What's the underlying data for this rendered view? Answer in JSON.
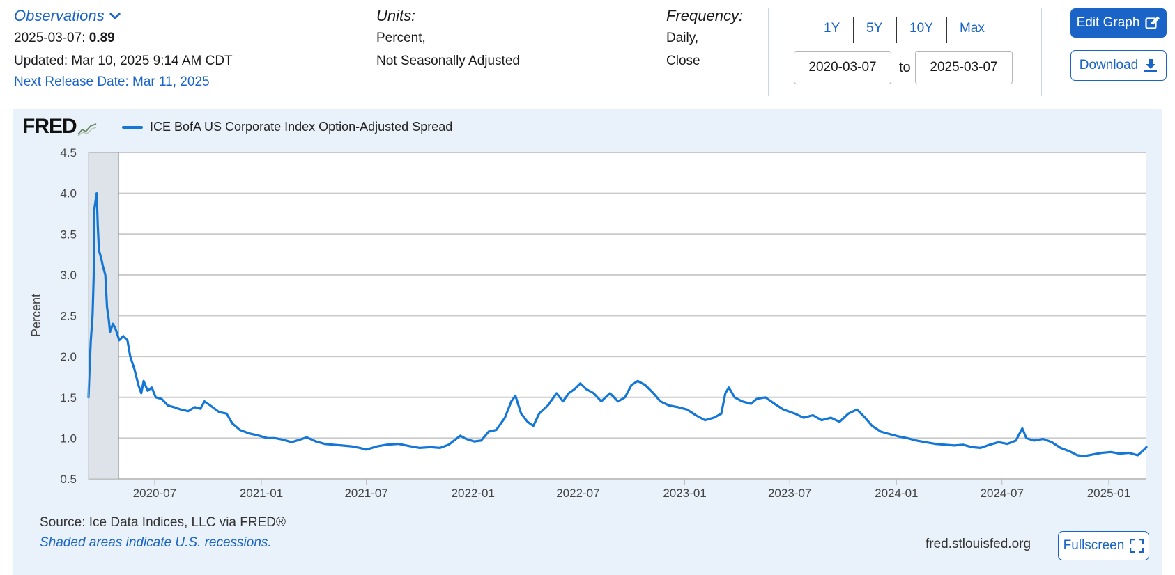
{
  "header": {
    "observations_label": "Observations",
    "obs_date": "2025-03-07:",
    "obs_value": "0.89",
    "updated": "Updated: Mar 10, 2025 9:14 AM CDT",
    "next_release": "Next Release Date: Mar 11, 2025",
    "units_label": "Units:",
    "units_line1": "Percent,",
    "units_line2": "Not Seasonally Adjusted",
    "frequency_label": "Frequency:",
    "frequency_line1": "Daily,",
    "frequency_line2": "Close",
    "range_buttons": [
      "1Y",
      "5Y",
      "10Y",
      "Max"
    ],
    "start_date": "2020-03-07",
    "to_label": "to",
    "end_date": "2025-03-07",
    "edit_graph_label": "Edit Graph",
    "download_label": "Download"
  },
  "footer": {
    "source": "Source: Ice Data Indices, LLC via FRED®",
    "recession_note": "Shaded areas indicate U.S. recessions.",
    "url": "fred.stlouisfed.org",
    "fullscreen_label": "Fullscreen"
  },
  "logo_text": "FRED",
  "colors": {
    "accent": "#1a64c8",
    "series": "#1477d6",
    "panel_bg": "#e9f2fa",
    "recession_shade": "#dde3e8"
  },
  "chart_data": {
    "type": "line",
    "title": "",
    "xlabel": "",
    "ylabel": "Percent",
    "ylim": [
      0.5,
      4.5
    ],
    "xlim": [
      "2020-03-09",
      "2025-03-07"
    ],
    "yticks": [
      "0.5",
      "1.0",
      "1.5",
      "2.0",
      "2.5",
      "3.0",
      "3.5",
      "4.0",
      "4.5"
    ],
    "xticks": [
      "2020-07",
      "2021-01",
      "2021-07",
      "2022-01",
      "2022-07",
      "2023-01",
      "2023-07",
      "2024-01",
      "2024-07",
      "2025-01"
    ],
    "grid": true,
    "legend_position": "top-left",
    "recessions": [
      {
        "start": "2020-03-09",
        "end": "2020-04-30"
      }
    ],
    "series": [
      {
        "name": "ICE BofA US Corporate Index Option-Adjusted Spread",
        "points": [
          [
            "2020-03-09",
            1.5
          ],
          [
            "2020-03-11",
            1.9
          ],
          [
            "2020-03-13",
            2.2
          ],
          [
            "2020-03-16",
            2.5
          ],
          [
            "2020-03-18",
            3.0
          ],
          [
            "2020-03-19",
            3.8
          ],
          [
            "2020-03-23",
            4.0
          ],
          [
            "2020-03-25",
            3.6
          ],
          [
            "2020-03-27",
            3.3
          ],
          [
            "2020-03-31",
            3.2
          ],
          [
            "2020-04-03",
            3.1
          ],
          [
            "2020-04-07",
            3.0
          ],
          [
            "2020-04-10",
            2.6
          ],
          [
            "2020-04-13",
            2.45
          ],
          [
            "2020-04-15",
            2.3
          ],
          [
            "2020-04-20",
            2.4
          ],
          [
            "2020-04-25",
            2.33
          ],
          [
            "2020-05-01",
            2.2
          ],
          [
            "2020-05-08",
            2.25
          ],
          [
            "2020-05-15",
            2.2
          ],
          [
            "2020-05-20",
            2.0
          ],
          [
            "2020-05-27",
            1.85
          ],
          [
            "2020-06-03",
            1.65
          ],
          [
            "2020-06-08",
            1.55
          ],
          [
            "2020-06-12",
            1.7
          ],
          [
            "2020-06-19",
            1.58
          ],
          [
            "2020-06-26",
            1.62
          ],
          [
            "2020-07-03",
            1.5
          ],
          [
            "2020-07-13",
            1.48
          ],
          [
            "2020-07-24",
            1.4
          ],
          [
            "2020-08-03",
            1.38
          ],
          [
            "2020-08-15",
            1.35
          ],
          [
            "2020-08-28",
            1.33
          ],
          [
            "2020-09-08",
            1.38
          ],
          [
            "2020-09-18",
            1.36
          ],
          [
            "2020-09-25",
            1.45
          ],
          [
            "2020-10-05",
            1.4
          ],
          [
            "2020-10-20",
            1.32
          ],
          [
            "2020-11-02",
            1.3
          ],
          [
            "2020-11-12",
            1.18
          ],
          [
            "2020-11-25",
            1.1
          ],
          [
            "2020-12-10",
            1.06
          ],
          [
            "2020-12-28",
            1.03
          ],
          [
            "2021-01-12",
            1.0
          ],
          [
            "2021-01-25",
            1.0
          ],
          [
            "2021-02-08",
            0.98
          ],
          [
            "2021-02-22",
            0.95
          ],
          [
            "2021-03-08",
            0.98
          ],
          [
            "2021-03-20",
            1.01
          ],
          [
            "2021-04-05",
            0.96
          ],
          [
            "2021-04-20",
            0.93
          ],
          [
            "2021-05-05",
            0.92
          ],
          [
            "2021-05-20",
            0.91
          ],
          [
            "2021-06-05",
            0.9
          ],
          [
            "2021-06-20",
            0.88
          ],
          [
            "2021-07-01",
            0.86
          ],
          [
            "2021-07-20",
            0.9
          ],
          [
            "2021-08-05",
            0.92
          ],
          [
            "2021-08-25",
            0.93
          ],
          [
            "2021-09-15",
            0.9
          ],
          [
            "2021-10-01",
            0.88
          ],
          [
            "2021-10-20",
            0.89
          ],
          [
            "2021-11-05",
            0.88
          ],
          [
            "2021-11-20",
            0.92
          ],
          [
            "2021-12-01",
            0.98
          ],
          [
            "2021-12-10",
            1.03
          ],
          [
            "2021-12-20",
            0.99
          ],
          [
            "2022-01-03",
            0.96
          ],
          [
            "2022-01-15",
            0.97
          ],
          [
            "2022-01-28",
            1.08
          ],
          [
            "2022-02-10",
            1.1
          ],
          [
            "2022-02-25",
            1.25
          ],
          [
            "2022-03-08",
            1.45
          ],
          [
            "2022-03-15",
            1.52
          ],
          [
            "2022-03-25",
            1.3
          ],
          [
            "2022-04-05",
            1.2
          ],
          [
            "2022-04-15",
            1.15
          ],
          [
            "2022-04-25",
            1.3
          ],
          [
            "2022-05-10",
            1.4
          ],
          [
            "2022-05-25",
            1.55
          ],
          [
            "2022-06-05",
            1.45
          ],
          [
            "2022-06-15",
            1.55
          ],
          [
            "2022-06-25",
            1.6
          ],
          [
            "2022-07-05",
            1.67
          ],
          [
            "2022-07-15",
            1.6
          ],
          [
            "2022-07-28",
            1.55
          ],
          [
            "2022-08-10",
            1.45
          ],
          [
            "2022-08-25",
            1.55
          ],
          [
            "2022-09-08",
            1.45
          ],
          [
            "2022-09-20",
            1.5
          ],
          [
            "2022-10-01",
            1.65
          ],
          [
            "2022-10-12",
            1.7
          ],
          [
            "2022-10-25",
            1.65
          ],
          [
            "2022-11-08",
            1.55
          ],
          [
            "2022-11-20",
            1.45
          ],
          [
            "2022-12-05",
            1.4
          ],
          [
            "2022-12-20",
            1.38
          ],
          [
            "2023-01-05",
            1.35
          ],
          [
            "2023-01-20",
            1.28
          ],
          [
            "2023-02-05",
            1.22
          ],
          [
            "2023-02-20",
            1.25
          ],
          [
            "2023-03-05",
            1.3
          ],
          [
            "2023-03-12",
            1.55
          ],
          [
            "2023-03-18",
            1.62
          ],
          [
            "2023-03-28",
            1.5
          ],
          [
            "2023-04-10",
            1.45
          ],
          [
            "2023-04-25",
            1.42
          ],
          [
            "2023-05-05",
            1.48
          ],
          [
            "2023-05-20",
            1.5
          ],
          [
            "2023-06-05",
            1.42
          ],
          [
            "2023-06-20",
            1.35
          ],
          [
            "2023-07-10",
            1.3
          ],
          [
            "2023-07-25",
            1.25
          ],
          [
            "2023-08-10",
            1.28
          ],
          [
            "2023-08-25",
            1.22
          ],
          [
            "2023-09-10",
            1.25
          ],
          [
            "2023-09-25",
            1.2
          ],
          [
            "2023-10-10",
            1.3
          ],
          [
            "2023-10-25",
            1.35
          ],
          [
            "2023-11-08",
            1.25
          ],
          [
            "2023-11-20",
            1.15
          ],
          [
            "2023-12-05",
            1.08
          ],
          [
            "2023-12-20",
            1.05
          ],
          [
            "2024-01-05",
            1.02
          ],
          [
            "2024-01-20",
            1.0
          ],
          [
            "2024-02-05",
            0.97
          ],
          [
            "2024-02-20",
            0.95
          ],
          [
            "2024-03-08",
            0.93
          ],
          [
            "2024-03-25",
            0.92
          ],
          [
            "2024-04-10",
            0.91
          ],
          [
            "2024-04-25",
            0.92
          ],
          [
            "2024-05-10",
            0.89
          ],
          [
            "2024-05-25",
            0.88
          ],
          [
            "2024-06-10",
            0.92
          ],
          [
            "2024-06-25",
            0.95
          ],
          [
            "2024-07-10",
            0.93
          ],
          [
            "2024-07-25",
            0.97
          ],
          [
            "2024-08-05",
            1.12
          ],
          [
            "2024-08-12",
            1.0
          ],
          [
            "2024-08-25",
            0.97
          ],
          [
            "2024-09-10",
            0.99
          ],
          [
            "2024-09-25",
            0.95
          ],
          [
            "2024-10-10",
            0.88
          ],
          [
            "2024-10-25",
            0.84
          ],
          [
            "2024-11-08",
            0.79
          ],
          [
            "2024-11-20",
            0.78
          ],
          [
            "2024-12-05",
            0.8
          ],
          [
            "2024-12-20",
            0.82
          ],
          [
            "2025-01-05",
            0.83
          ],
          [
            "2025-01-20",
            0.81
          ],
          [
            "2025-02-05",
            0.82
          ],
          [
            "2025-02-20",
            0.79
          ],
          [
            "2025-03-03",
            0.86
          ],
          [
            "2025-03-07",
            0.89
          ]
        ]
      }
    ]
  }
}
